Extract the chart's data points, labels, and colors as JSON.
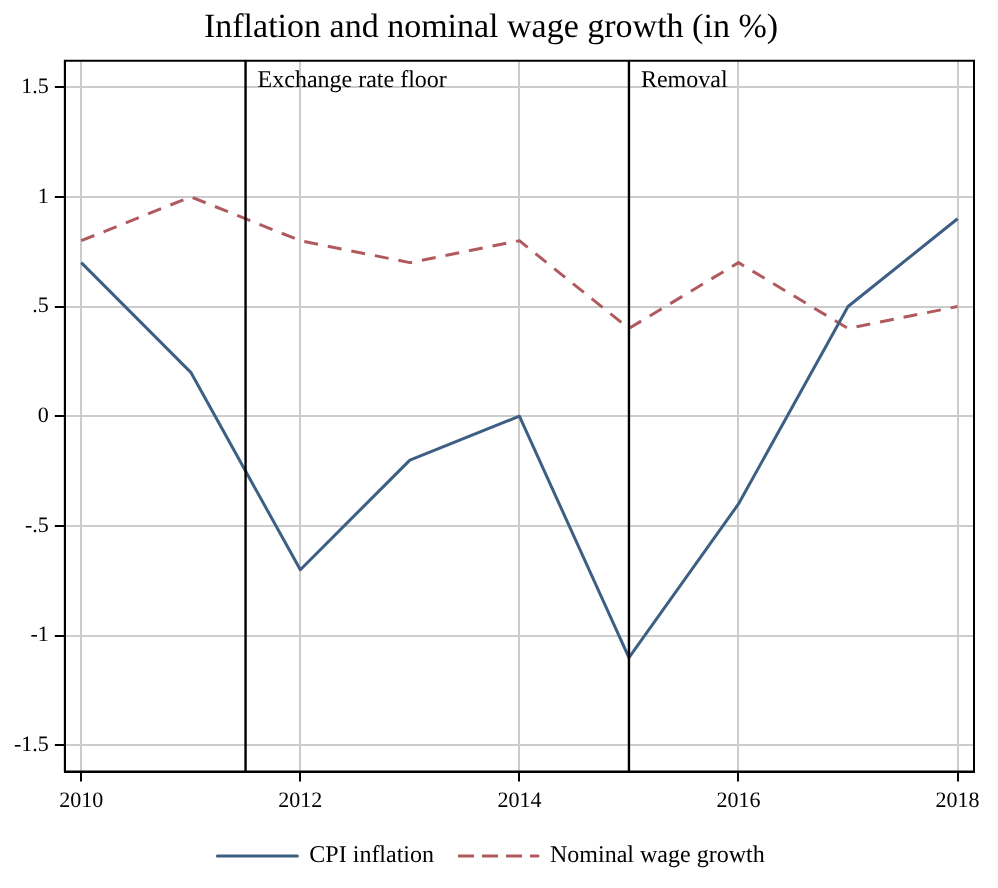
{
  "chart_data": {
    "type": "line",
    "title": "Inflation and nominal wage growth (in %)",
    "x": [
      2010,
      2011,
      2012,
      2013,
      2014,
      2015,
      2016,
      2017,
      2018
    ],
    "series": [
      {
        "name": "CPI inflation",
        "color": "#3e5f84",
        "values": [
          0.7,
          0.2,
          -0.7,
          -0.2,
          0,
          -1.1,
          -0.4,
          0.5,
          0.9
        ],
        "line_style": "solid"
      },
      {
        "name": "Nominal wage growth",
        "color": "#b05a5e",
        "values": [
          0.8,
          1.0,
          0.8,
          0.7,
          0.8,
          0.4,
          0.7,
          0.4,
          0.5
        ],
        "line_style": "dashed"
      }
    ],
    "xlim": [
      2009.85,
      2018.15
    ],
    "xticks": [
      2010,
      2012,
      2014,
      2016,
      2018
    ],
    "ylim": [
      -1.62,
      1.62
    ],
    "yticks": [
      {
        "value": -1.5,
        "label": "-1.5"
      },
      {
        "value": -1,
        "label": "-1"
      },
      {
        "value": -0.5,
        "label": "-.5"
      },
      0,
      {
        "value": 0.5,
        "label": ".5"
      },
      1,
      1.5
    ],
    "ref_lines": [
      {
        "axis": "x",
        "value": 2011.5,
        "label": "Exchange rate floor",
        "color": "#000000"
      },
      {
        "axis": "x",
        "value": 2015,
        "label": "Removal",
        "color": "#000000"
      }
    ],
    "grid": true,
    "legend": "bottom",
    "marker": "none"
  }
}
